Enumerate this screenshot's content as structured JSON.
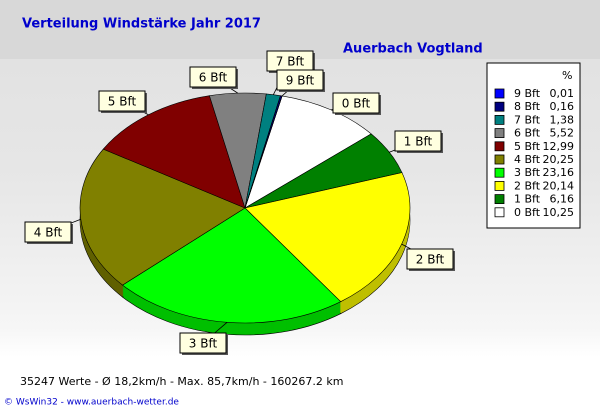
{
  "chart_data": {
    "type": "pie",
    "title": "Verteilung Windstärke  Jahr 2017",
    "subtitle": "Auerbach Vogtland",
    "legend_header": "%",
    "categories": [
      "9 Bft",
      "8 Bft",
      "7 Bft",
      "6 Bft",
      "5 Bft",
      "4 Bft",
      "3 Bft",
      "2 Bft",
      "1 Bft",
      "0 Bft"
    ],
    "values": [
      0.01,
      0.16,
      1.38,
      5.52,
      12.99,
      20.25,
      23.16,
      20.14,
      6.16,
      10.25
    ],
    "value_labels": [
      "0,01",
      "0,16",
      "1,38",
      "5,52",
      "12,99",
      "20,25",
      "23,16",
      "20,14",
      "6,16",
      "10,25"
    ],
    "colors": [
      "#0000ff",
      "#000080",
      "#008080",
      "#808080",
      "#800000",
      "#808000",
      "#00ff00",
      "#ffff00",
      "#008000",
      "#ffffff"
    ],
    "legend": "right",
    "annotations": [
      "35247 Werte   -   Ø 18,2km/h  -  Max. 85,7km/h  -   160267.2 km",
      "© WsWin32  -  www.auerbach-wetter.de"
    ]
  }
}
